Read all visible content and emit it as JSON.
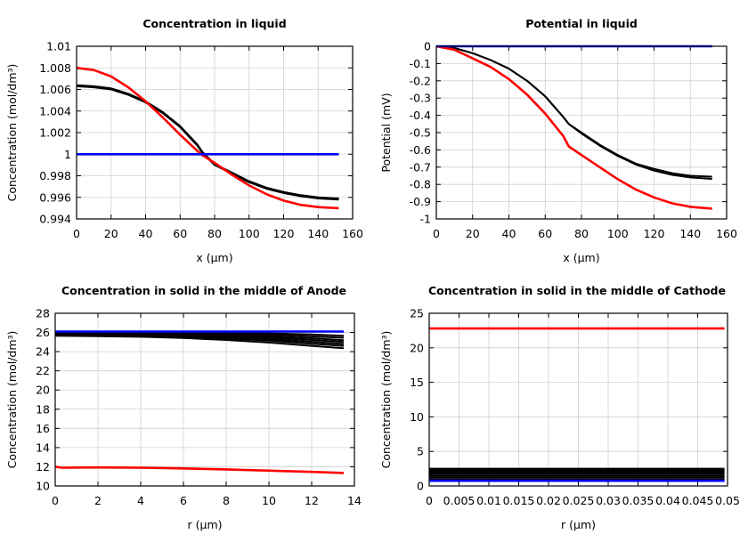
{
  "chart_data": [
    {
      "type": "line",
      "title": "Concentration in liquid",
      "xlabel": "x (µm)",
      "ylabel": "Concentration (mol/dm³)",
      "xlim": [
        0,
        160
      ],
      "ylim": [
        0.994,
        1.01
      ],
      "xticks": [
        "0",
        "20",
        "40",
        "60",
        "80",
        "100",
        "120",
        "140",
        "160"
      ],
      "yticks": [
        "0.994",
        "0.996",
        "0.998",
        "1",
        "1.002",
        "1.004",
        "1.006",
        "1.008",
        "1.01"
      ],
      "grid": true,
      "series": [
        {
          "color": "#000000",
          "x": [
            0,
            10,
            20,
            30,
            40,
            50,
            60,
            70,
            73,
            80,
            90,
            100,
            110,
            120,
            130,
            140,
            152
          ],
          "y": [
            1.0063,
            1.0062,
            1.006,
            1.0055,
            1.0048,
            1.0038,
            1.0025,
            1.0008,
            1.0001,
            0.999,
            0.9982,
            0.9974,
            0.9968,
            0.9964,
            0.9961,
            0.9959,
            0.9958
          ]
        },
        {
          "color": "#000000",
          "x": [
            0,
            10,
            20,
            30,
            40,
            50,
            60,
            70,
            73,
            80,
            90,
            100,
            110,
            120,
            130,
            140,
            152
          ],
          "y": [
            1.0064,
            1.0063,
            1.0061,
            1.0056,
            1.0049,
            1.0039,
            1.0026,
            1.0009,
            1.0002,
            0.9991,
            0.9983,
            0.9975,
            0.9969,
            0.9965,
            0.9962,
            0.996,
            0.9959
          ]
        },
        {
          "color": "#ff0000",
          "x": [
            0,
            10,
            20,
            30,
            40,
            50,
            60,
            70,
            73,
            80,
            90,
            100,
            110,
            120,
            130,
            140,
            152
          ],
          "y": [
            1.008,
            1.0078,
            1.0072,
            1.0062,
            1.0049,
            1.0034,
            1.0018,
            1.0003,
            0.9999,
            0.9992,
            0.9981,
            0.9971,
            0.9963,
            0.9957,
            0.9953,
            0.9951,
            0.995
          ]
        },
        {
          "color": "#0000ff",
          "x": [
            0,
            152
          ],
          "y": [
            1.0,
            1.0
          ]
        }
      ]
    },
    {
      "type": "line",
      "title": "Potential in liquid",
      "xlabel": "x (µm)",
      "ylabel": "Potential (mV)",
      "xlim": [
        0,
        160
      ],
      "ylim": [
        -1,
        0
      ],
      "xticks": [
        "0",
        "20",
        "40",
        "60",
        "80",
        "100",
        "120",
        "140",
        "160"
      ],
      "yticks": [
        "-1",
        "-0.9",
        "-0.8",
        "-0.7",
        "-0.6",
        "-0.5",
        "-0.4",
        "-0.3",
        "-0.2",
        "-0.1",
        "0"
      ],
      "grid": true,
      "series": [
        {
          "color": "#000000",
          "x": [
            0,
            10,
            20,
            30,
            40,
            50,
            60,
            70,
            73,
            80,
            90,
            100,
            110,
            120,
            130,
            140,
            152
          ],
          "y": [
            0,
            -0.01,
            -0.04,
            -0.08,
            -0.13,
            -0.2,
            -0.29,
            -0.41,
            -0.45,
            -0.5,
            -0.57,
            -0.63,
            -0.68,
            -0.71,
            -0.735,
            -0.75,
            -0.755
          ]
        },
        {
          "color": "#000000",
          "x": [
            0,
            10,
            20,
            30,
            40,
            50,
            60,
            70,
            73,
            80,
            90,
            100,
            110,
            120,
            130,
            140,
            152
          ],
          "y": [
            0,
            -0.01,
            -0.04,
            -0.08,
            -0.13,
            -0.2,
            -0.29,
            -0.41,
            -0.45,
            -0.505,
            -0.575,
            -0.635,
            -0.685,
            -0.72,
            -0.745,
            -0.76,
            -0.768
          ]
        },
        {
          "color": "#ff0000",
          "x": [
            0,
            10,
            20,
            30,
            40,
            50,
            60,
            70,
            73,
            80,
            90,
            100,
            110,
            120,
            130,
            140,
            152
          ],
          "y": [
            0,
            -0.02,
            -0.07,
            -0.12,
            -0.19,
            -0.28,
            -0.39,
            -0.52,
            -0.58,
            -0.63,
            -0.7,
            -0.77,
            -0.83,
            -0.875,
            -0.91,
            -0.93,
            -0.94
          ]
        },
        {
          "color": "#0000ff",
          "x": [
            0,
            152
          ],
          "y": [
            0,
            0
          ]
        }
      ]
    },
    {
      "type": "line",
      "title": "Concentration in solid in the middle of Anode",
      "xlabel": "r (µm)",
      "ylabel": "Concentration (mol/dm³)",
      "xlim": [
        0,
        14
      ],
      "ylim": [
        10,
        28
      ],
      "xticks": [
        "0",
        "2",
        "4",
        "6",
        "8",
        "10",
        "12",
        "14"
      ],
      "yticks": [
        "10",
        "12",
        "14",
        "16",
        "18",
        "20",
        "22",
        "24",
        "26",
        "28"
      ],
      "grid": true,
      "series": [
        {
          "color": "#000000",
          "x": [
            0,
            2,
            4,
            6,
            8,
            10,
            12,
            13.5
          ],
          "y": [
            26.0,
            26.0,
            25.98,
            25.97,
            25.95,
            25.9,
            25.8,
            25.65
          ]
        },
        {
          "color": "#000000",
          "x": [
            0,
            2,
            4,
            6,
            8,
            10,
            12,
            13.5
          ],
          "y": [
            25.95,
            25.94,
            25.92,
            25.88,
            25.84,
            25.76,
            25.6,
            25.45
          ]
        },
        {
          "color": "#000000",
          "x": [
            0,
            2,
            4,
            6,
            8,
            10,
            12,
            13.5
          ],
          "y": [
            25.9,
            25.88,
            25.85,
            25.8,
            25.72,
            25.6,
            25.4,
            25.2
          ]
        },
        {
          "color": "#000000",
          "x": [
            0,
            2,
            4,
            6,
            8,
            10,
            12,
            13.5
          ],
          "y": [
            25.85,
            25.83,
            25.79,
            25.72,
            25.62,
            25.46,
            25.22,
            25.0
          ]
        },
        {
          "color": "#000000",
          "x": [
            0,
            2,
            4,
            6,
            8,
            10,
            12,
            13.5
          ],
          "y": [
            25.8,
            25.78,
            25.73,
            25.64,
            25.5,
            25.3,
            25.02,
            24.8
          ]
        },
        {
          "color": "#000000",
          "x": [
            0,
            2,
            4,
            6,
            8,
            10,
            12,
            13.5
          ],
          "y": [
            25.75,
            25.72,
            25.66,
            25.55,
            25.38,
            25.15,
            24.82,
            24.6
          ]
        },
        {
          "color": "#000000",
          "x": [
            0,
            2,
            4,
            6,
            8,
            10,
            12,
            13.5
          ],
          "y": [
            25.65,
            25.62,
            25.55,
            25.42,
            25.22,
            24.95,
            24.6,
            24.35
          ]
        },
        {
          "color": "#ff0000",
          "x": [
            0,
            0.3,
            2,
            4,
            6,
            8,
            10,
            12,
            13.5
          ],
          "y": [
            12.0,
            11.9,
            11.93,
            11.9,
            11.83,
            11.73,
            11.6,
            11.47,
            11.35
          ]
        },
        {
          "color": "#0000ff",
          "x": [
            0,
            13.5
          ],
          "y": [
            26.1,
            26.1
          ]
        }
      ]
    },
    {
      "type": "line",
      "title": "Concentration in solid in the middle of Cathode",
      "xlabel": "r (µm)",
      "ylabel": "Concentration (mol/dm³)",
      "xlim": [
        0,
        0.05
      ],
      "ylim": [
        0,
        25
      ],
      "xticks": [
        "0",
        "0.005",
        "0.01",
        "0.015",
        "0.02",
        "0.025",
        "0.03",
        "0.035",
        "0.04",
        "0.045",
        "0.05"
      ],
      "yticks": [
        "0",
        "5",
        "10",
        "15",
        "20",
        "25"
      ],
      "grid": true,
      "series": [
        {
          "color": "#000000",
          "x": [
            0,
            0.0495
          ],
          "y": [
            2.5,
            2.5
          ]
        },
        {
          "color": "#000000",
          "x": [
            0,
            0.0495
          ],
          "y": [
            2.25,
            2.25
          ]
        },
        {
          "color": "#000000",
          "x": [
            0,
            0.0495
          ],
          "y": [
            2.0,
            2.0
          ]
        },
        {
          "color": "#000000",
          "x": [
            0,
            0.0495
          ],
          "y": [
            1.75,
            1.75
          ]
        },
        {
          "color": "#000000",
          "x": [
            0,
            0.0495
          ],
          "y": [
            1.5,
            1.5
          ]
        },
        {
          "color": "#000000",
          "x": [
            0,
            0.0495
          ],
          "y": [
            1.25,
            1.25
          ]
        },
        {
          "color": "#000000",
          "x": [
            0,
            0.0495
          ],
          "y": [
            1.0,
            1.0
          ]
        },
        {
          "color": "#ff0000",
          "x": [
            0,
            0.0495
          ],
          "y": [
            22.8,
            22.8
          ]
        },
        {
          "color": "#0000ff",
          "x": [
            0,
            0.0495
          ],
          "y": [
            0.75,
            0.75
          ]
        }
      ]
    }
  ]
}
